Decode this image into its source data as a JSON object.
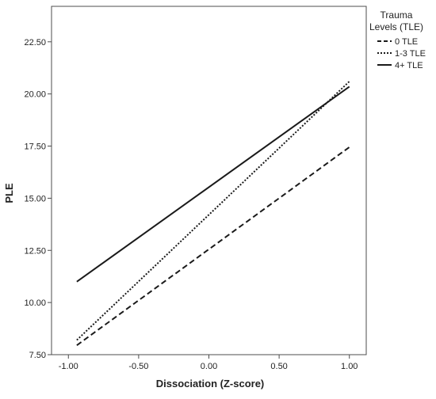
{
  "chart_data": {
    "type": "line",
    "title": "",
    "xlabel": "Dissociation (Z-score)",
    "ylabel": "PLE",
    "xlim": [
      -1.12,
      1.12
    ],
    "ylim": [
      7.5,
      24.2
    ],
    "x_ticks": [
      -1.0,
      -0.5,
      0.0,
      0.5,
      1.0
    ],
    "x_tick_labels": [
      "-1.00",
      "-0.50",
      "0.00",
      "0.50",
      "1.00"
    ],
    "y_ticks": [
      7.5,
      10.0,
      12.5,
      15.0,
      17.5,
      20.0,
      22.5
    ],
    "y_tick_labels": [
      "7.50",
      "10.00",
      "12.50",
      "15.00",
      "17.50",
      "20.00",
      "22.50"
    ],
    "grid": false,
    "legend": {
      "title_line1": "Trauma",
      "title_line2": "Levels (TLE)",
      "placement": "right"
    },
    "series": [
      {
        "name": "0 TLE",
        "style": "dashed",
        "x": [
          -0.94,
          1.0
        ],
        "y": [
          7.95,
          17.45
        ]
      },
      {
        "name": "1-3 TLE",
        "style": "dotted",
        "x": [
          -0.94,
          1.0
        ],
        "y": [
          8.2,
          20.6
        ]
      },
      {
        "name": "4+ TLE",
        "style": "solid",
        "x": [
          -0.94,
          1.0
        ],
        "y": [
          11.0,
          20.35
        ]
      }
    ],
    "line_color": "#1a1a1a"
  }
}
